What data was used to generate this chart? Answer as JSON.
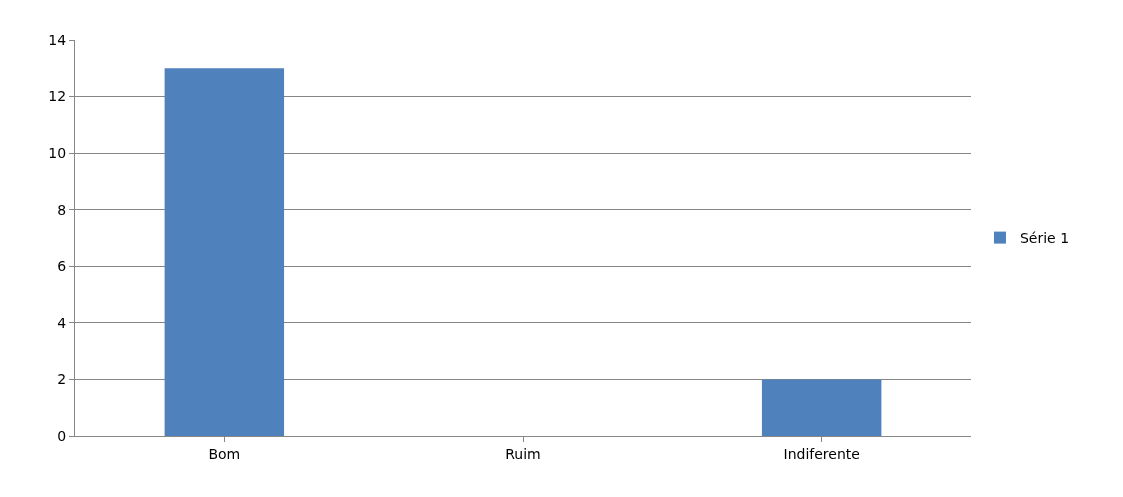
{
  "chart_data": {
    "type": "bar",
    "categories": [
      "Bom",
      "Ruim",
      "Indiferente"
    ],
    "series": [
      {
        "name": "Série 1",
        "color": "#4f81bd",
        "values": [
          13,
          0,
          2
        ]
      }
    ],
    "ylim": [
      0,
      14
    ],
    "yticks": [
      0,
      2,
      4,
      6,
      8,
      10,
      12,
      14
    ],
    "grid": "y",
    "legend": "right"
  }
}
